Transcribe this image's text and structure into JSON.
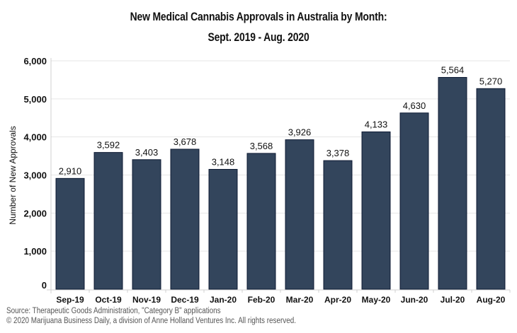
{
  "chart_data": {
    "type": "bar",
    "title": "New Medical Cannabis Approvals in Australia by Month:",
    "subtitle": "Sept. 2019 - Aug. 2020",
    "xlabel": "",
    "ylabel": "Number of New Approvals",
    "ylim": [
      0,
      6000
    ],
    "yticks": [
      0,
      1000,
      2000,
      3000,
      4000,
      5000,
      6000
    ],
    "ytick_labels": [
      "0",
      "1,000",
      "2,000",
      "3,000",
      "4,000",
      "5,000",
      "6,000"
    ],
    "categories": [
      "Sep-19",
      "Oct-19",
      "Nov-19",
      "Dec-19",
      "Jan-20",
      "Feb-20",
      "Mar-20",
      "Apr-20",
      "May-20",
      "Jun-20",
      "Jul-20",
      "Aug-20"
    ],
    "values": [
      2910,
      3592,
      3403,
      3678,
      3148,
      3568,
      3926,
      3378,
      4133,
      4630,
      5564,
      5270
    ],
    "value_labels": [
      "2,910",
      "3,592",
      "3,403",
      "3,678",
      "3,148",
      "3,568",
      "3,926",
      "3,378",
      "4,133",
      "4,630",
      "5,564",
      "5,270"
    ],
    "grid": true,
    "legend": "none",
    "bar_color": "#33455c",
    "bar_edge_color": "#0d1a33",
    "grid_color": "#e6e6e6"
  },
  "footer": {
    "source": "Source: Therapeutic Goods Administration, \"Category B\" applications",
    "copyright": "© 2020 Marijuana Business Daily, a division of Anne Holland Ventures Inc. All rights reserved."
  }
}
